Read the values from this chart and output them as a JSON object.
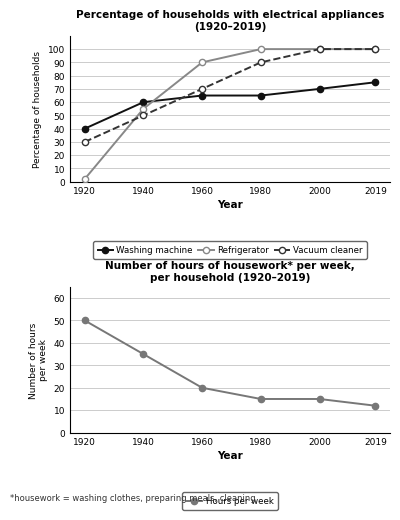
{
  "years": [
    1920,
    1940,
    1960,
    1980,
    2000,
    2019
  ],
  "washing_machine": [
    40,
    60,
    65,
    65,
    70,
    75
  ],
  "refrigerator": [
    2,
    55,
    90,
    100,
    100,
    100
  ],
  "vacuum_cleaner": [
    30,
    50,
    70,
    90,
    100,
    100
  ],
  "hours_per_week": [
    50,
    35,
    20,
    15,
    15,
    12
  ],
  "title1": "Percentage of households with electrical appliances\n(1920–2019)",
  "title2": "Number of hours of housework* per week,\nper household (1920–2019)",
  "ylabel1": "Percentage of households",
  "ylabel2": "Number of hours\nper week",
  "xlabel": "Year",
  "footnote": "*housework = washing clothes, preparing meals, cleaning",
  "ylim1": [
    0,
    110
  ],
  "ylim2": [
    0,
    65
  ],
  "yticks1": [
    0,
    10,
    20,
    30,
    40,
    50,
    60,
    70,
    80,
    90,
    100
  ],
  "yticks2": [
    0,
    10,
    20,
    30,
    40,
    50,
    60
  ],
  "color_wm": "#111111",
  "color_ref": "#888888",
  "color_vac": "#333333",
  "color_hours": "#777777",
  "bg_color": "#ffffff"
}
